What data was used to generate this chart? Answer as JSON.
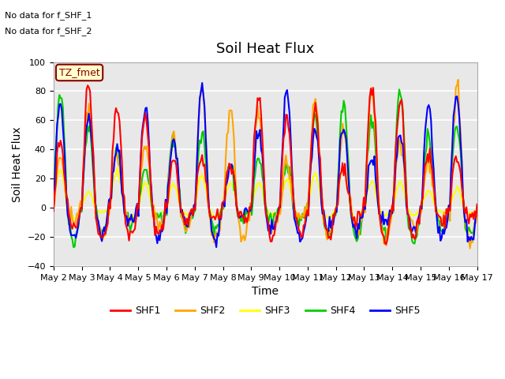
{
  "title": "Soil Heat Flux",
  "ylabel": "Soil Heat Flux",
  "xlabel": "Time",
  "ylim": [
    -40,
    100
  ],
  "yticks": [
    -40,
    -20,
    0,
    20,
    40,
    60,
    80,
    100
  ],
  "series_colors": {
    "SHF1": "#ff0000",
    "SHF2": "#ffa500",
    "SHF3": "#ffff00",
    "SHF4": "#00cc00",
    "SHF5": "#0000ff"
  },
  "annotation_text1": "No data for f_SHF_1",
  "annotation_text2": "No data for f_SHF_2",
  "box_label": "TZ_fmet",
  "x_tick_labels": [
    "May 2",
    "May 3",
    "May 4",
    "May 5",
    "May 6",
    "May 7",
    "May 8",
    "May 9",
    "May 10",
    "May 11",
    "May 12",
    "May 13",
    "May 14",
    "May 15",
    "May 16",
    "May 17"
  ],
  "background_color": "#e8e8e8",
  "grid_color": "#ffffff",
  "linewidth": 1.5,
  "days": 15,
  "points_per_day": 24
}
